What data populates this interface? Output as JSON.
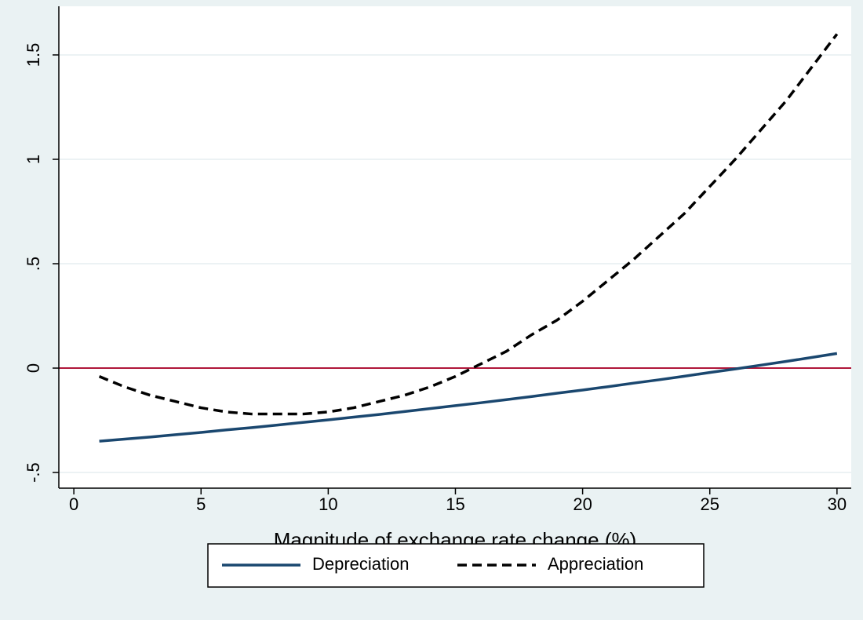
{
  "chart_data": {
    "type": "line",
    "x_label": "Magnitude of exchange rate change (%)",
    "x": [
      1,
      2,
      3,
      4,
      5,
      6,
      7,
      8,
      9,
      10,
      11,
      12,
      13,
      14,
      15,
      16,
      17,
      18,
      19,
      20,
      21,
      22,
      23,
      24,
      25,
      26,
      27,
      28,
      29,
      30
    ],
    "series": [
      {
        "name": "Depreciation",
        "color": "#1a476f",
        "dash": false,
        "values": [
          -0.35,
          -0.34,
          -0.33,
          -0.319,
          -0.308,
          -0.296,
          -0.285,
          -0.273,
          -0.26,
          -0.248,
          -0.235,
          -0.222,
          -0.208,
          -0.194,
          -0.18,
          -0.166,
          -0.151,
          -0.136,
          -0.12,
          -0.105,
          -0.089,
          -0.072,
          -0.056,
          -0.039,
          -0.021,
          -0.004,
          0.014,
          0.032,
          0.051,
          0.07
        ]
      },
      {
        "name": "Appreciation",
        "color": "#000000",
        "dash": true,
        "values": [
          -0.04,
          -0.09,
          -0.13,
          -0.16,
          -0.19,
          -0.21,
          -0.22,
          -0.22,
          -0.22,
          -0.21,
          -0.19,
          -0.16,
          -0.13,
          -0.09,
          -0.04,
          0.02,
          0.08,
          0.16,
          0.23,
          0.32,
          0.42,
          0.52,
          0.63,
          0.74,
          0.87,
          1.0,
          1.14,
          1.28,
          1.44,
          1.6
        ]
      }
    ],
    "reference_line": {
      "value": 0,
      "color": "#b0173a"
    },
    "xlim": [
      -0.59,
      30.56
    ],
    "ylim": [
      -0.575,
      1.733
    ],
    "xticks": [
      0,
      5,
      10,
      15,
      20,
      25,
      30
    ],
    "yticks": [
      {
        "value": -0.5,
        "label": "-.5"
      },
      0,
      {
        "value": 0.5,
        "label": ".5"
      },
      1,
      1.5
    ],
    "grid": true,
    "legend_position": "bottom"
  }
}
